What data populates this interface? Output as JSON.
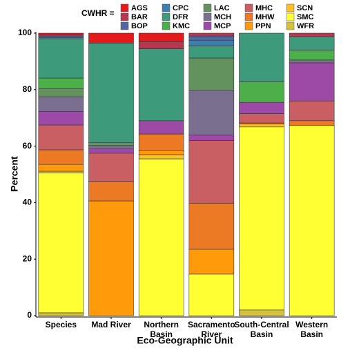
{
  "chart_data": {
    "type": "stacked-bar",
    "legend_title": "CWHR =",
    "x_label": "Eco-Geographic Unit",
    "y_label": "Percent",
    "categories": [
      "Species",
      "Mad River",
      "Northern\nBasin",
      "Sacramento\nRiver",
      "South-Central\nBasin",
      "Western\nBasin"
    ],
    "ylim": [
      0,
      100
    ],
    "yticks": [
      0,
      20,
      40,
      60,
      80,
      100
    ],
    "series": [
      {
        "name": "AGS",
        "color": "#e41a1c",
        "values": [
          0.4,
          3.5,
          3,
          0,
          0,
          0
        ]
      },
      {
        "name": "BAR",
        "color": "#b5384f",
        "values": [
          0.6,
          0,
          2.5,
          1,
          0,
          1.2
        ]
      },
      {
        "name": "BOP",
        "color": "#52679e",
        "values": [
          0.5,
          0,
          0,
          1.5,
          0,
          0
        ]
      },
      {
        "name": "CPC",
        "color": "#3a7fb0",
        "values": [
          0.5,
          0,
          0,
          2,
          0,
          0
        ]
      },
      {
        "name": "DFR",
        "color": "#3d9a7b",
        "values": [
          13.9,
          35.3,
          25.5,
          4.3,
          17.2,
          4.8
        ]
      },
      {
        "name": "KMC",
        "color": "#4daf4a",
        "values": [
          3.8,
          0,
          0,
          0,
          7.3,
          3.5
        ]
      },
      {
        "name": "LAC",
        "color": "#63925f",
        "values": [
          2.8,
          1,
          0,
          11.4,
          0,
          0
        ]
      },
      {
        "name": "MCH",
        "color": "#7a6f8e",
        "values": [
          5.2,
          1.2,
          0,
          15.8,
          0,
          1
        ]
      },
      {
        "name": "MCP",
        "color": "#9d4aa6",
        "values": [
          4.8,
          1.5,
          4.7,
          2,
          4,
          13.5
        ]
      },
      {
        "name": "MHC",
        "color": "#c95f62",
        "values": [
          8.8,
          10,
          0,
          22.2,
          3.3,
          7
        ]
      },
      {
        "name": "MHW",
        "color": "#ec7a25",
        "values": [
          5.2,
          6.9,
          5.8,
          16.3,
          0.4,
          1.7
        ]
      },
      {
        "name": "PPN",
        "color": "#ff9a0a",
        "values": [
          2.4,
          40.6,
          1.5,
          8.8,
          0,
          0
        ]
      },
      {
        "name": "SCN",
        "color": "#fdbf2a",
        "values": [
          0.5,
          0,
          1.5,
          0,
          1,
          0
        ]
      },
      {
        "name": "SMC",
        "color": "#ffff33",
        "values": [
          49.6,
          0,
          55.5,
          14.7,
          64.8,
          67.3
        ]
      },
      {
        "name": "WFR",
        "color": "#d6c13a",
        "values": [
          1,
          0,
          0,
          0,
          2,
          0
        ]
      }
    ]
  }
}
